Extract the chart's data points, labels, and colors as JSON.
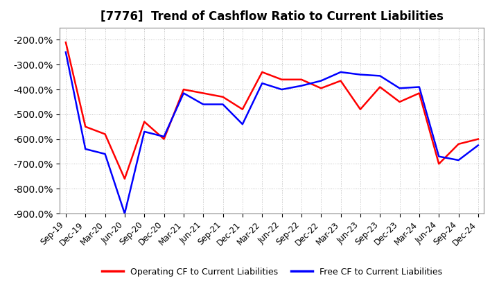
{
  "title": "[7776]  Trend of Cashflow Ratio to Current Liabilities",
  "x_labels": [
    "Sep-19",
    "Dec-19",
    "Mar-20",
    "Jun-20",
    "Sep-20",
    "Dec-20",
    "Mar-21",
    "Jun-21",
    "Sep-21",
    "Dec-21",
    "Mar-22",
    "Jun-22",
    "Sep-22",
    "Dec-22",
    "Mar-23",
    "Jun-23",
    "Sep-23",
    "Dec-23",
    "Mar-24",
    "Jun-24",
    "Sep-24",
    "Dec-24"
  ],
  "operating_cf": [
    -210,
    -550,
    -580,
    -760,
    -530,
    -600,
    -400,
    -415,
    -430,
    -480,
    -330,
    -360,
    -360,
    -395,
    -365,
    -480,
    -390,
    -450,
    -415,
    -700,
    -620,
    -600
  ],
  "free_cf": [
    -250,
    -640,
    -660,
    -900,
    -570,
    -590,
    -415,
    -460,
    -460,
    -540,
    -375,
    -400,
    -385,
    -365,
    -330,
    -340,
    -345,
    -395,
    -390,
    -670,
    -685,
    -625
  ],
  "ylim_min": -900,
  "ylim_max": -150,
  "yticks": [
    -900,
    -800,
    -700,
    -600,
    -500,
    -400,
    -300,
    -200
  ],
  "operating_color": "#ff0000",
  "free_color": "#0000ff",
  "grid_color": "#b0b0b0",
  "background_color": "#ffffff",
  "legend_operating": "Operating CF to Current Liabilities",
  "legend_free": "Free CF to Current Liabilities",
  "title_fontsize": 12,
  "tick_fontsize": 8.5,
  "linewidth": 1.8
}
